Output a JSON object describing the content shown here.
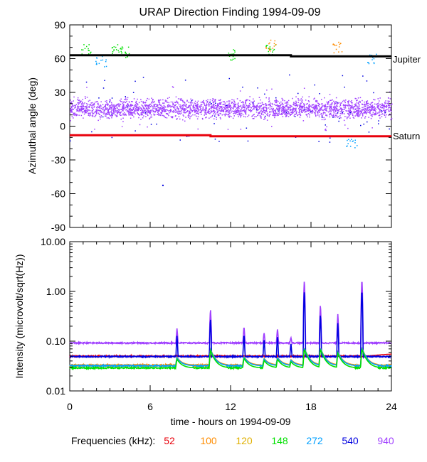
{
  "title": "URAP Direction Finding  1994-09-09",
  "colors": {
    "52": "#e8000b",
    "100": "#ff8c00",
    "120": "#e0b000",
    "148": "#00e000",
    "272": "#00a0ff",
    "540": "#0000e0",
    "940": "#a040ff",
    "jupiter": "#000000",
    "saturn": "#e8000b"
  },
  "legend": {
    "label": "Frequencies (kHz):",
    "items": [
      {
        "text": "52",
        "key": "52"
      },
      {
        "text": "100",
        "key": "100"
      },
      {
        "text": "120",
        "key": "120"
      },
      {
        "text": "148",
        "key": "148"
      },
      {
        "text": "272",
        "key": "272"
      },
      {
        "text": "540",
        "key": "540"
      },
      {
        "text": "940",
        "key": "940"
      }
    ]
  },
  "chart_data": [
    {
      "type": "scatter",
      "title": "URAP Direction Finding  1994-09-09",
      "xlabel": "time - hours on 1994-09-09",
      "ylabel": "Azimuthal angle (deg)",
      "xlim": [
        0,
        24
      ],
      "ylim": [
        -90,
        90
      ],
      "yticks": [
        90,
        60,
        30,
        0,
        -30,
        -60,
        -90
      ],
      "yticklabels": [
        "90",
        "60",
        "30",
        "0",
        "-30",
        "-60",
        "-90"
      ],
      "reference_lines": [
        {
          "name": "Jupiter",
          "key": "jupiter",
          "x": [
            0,
            16.5,
            16.5,
            24
          ],
          "y": [
            63,
            63,
            62,
            62
          ]
        },
        {
          "name": "Saturn",
          "key": "saturn",
          "x": [
            0,
            10.5,
            10.5,
            24
          ],
          "y": [
            -8,
            -8,
            -9,
            -9
          ]
        }
      ],
      "series": [
        {
          "name": "940",
          "key": "940",
          "band_center": 16,
          "band_width": 10,
          "x_range": [
            0,
            24
          ]
        },
        {
          "name": "148",
          "key": "148",
          "clusters": [
            {
              "x": 3.5,
              "y": 70
            },
            {
              "x": 15.0,
              "y": 68
            },
            {
              "x": 4.0,
              "y": 66
            },
            {
              "x": 1.2,
              "y": 68
            },
            {
              "x": 12.0,
              "y": 64
            }
          ]
        },
        {
          "name": "272",
          "key": "272",
          "clusters": [
            {
              "x": 2.3,
              "y": 58
            },
            {
              "x": 22.5,
              "y": 60
            },
            {
              "x": 21.0,
              "y": -15
            }
          ]
        },
        {
          "name": "100",
          "key": "100",
          "clusters": [
            {
              "x": 15.0,
              "y": 72
            },
            {
              "x": 20.0,
              "y": 70
            }
          ]
        }
      ]
    },
    {
      "type": "line",
      "xlabel": "time - hours on 1994-09-09",
      "ylabel": "Intensity (microvolt/sqrt(Hz))",
      "xscale": "linear",
      "yscale": "log",
      "xlim": [
        0,
        24
      ],
      "ylim": [
        0.01,
        10
      ],
      "yticks": [
        10,
        1,
        0.1,
        0.01
      ],
      "yticklabels": [
        "10.00",
        "1.00",
        "0.10",
        "0.01"
      ],
      "xticks": [
        0,
        6,
        12,
        18,
        24
      ],
      "xticklabels": [
        "0",
        "6",
        "12",
        "18",
        "24"
      ],
      "series": [
        {
          "name": "52",
          "key": "52",
          "baseline": 0.05
        },
        {
          "name": "100",
          "key": "100",
          "baseline": 0.033
        },
        {
          "name": "120",
          "key": "120",
          "baseline": 0.032
        },
        {
          "name": "148",
          "key": "148",
          "baseline": 0.029
        },
        {
          "name": "272",
          "key": "272",
          "baseline": 0.032
        },
        {
          "name": "540",
          "key": "540",
          "baseline": 0.049
        },
        {
          "name": "940",
          "key": "940",
          "baseline": 0.092
        }
      ],
      "bursts": [
        {
          "x": 8.0,
          "peak": 0.18
        },
        {
          "x": 10.5,
          "peak": 0.45
        },
        {
          "x": 13.0,
          "peak": 0.2
        },
        {
          "x": 14.5,
          "peak": 0.15
        },
        {
          "x": 15.5,
          "peak": 0.18
        },
        {
          "x": 16.5,
          "peak": 0.12
        },
        {
          "x": 17.5,
          "peak": 1.7
        },
        {
          "x": 18.7,
          "peak": 0.55
        },
        {
          "x": 20.0,
          "peak": 0.35
        },
        {
          "x": 21.8,
          "peak": 1.8
        }
      ]
    }
  ],
  "labels": {
    "jupiter": "Jupiter",
    "saturn": "Saturn"
  }
}
